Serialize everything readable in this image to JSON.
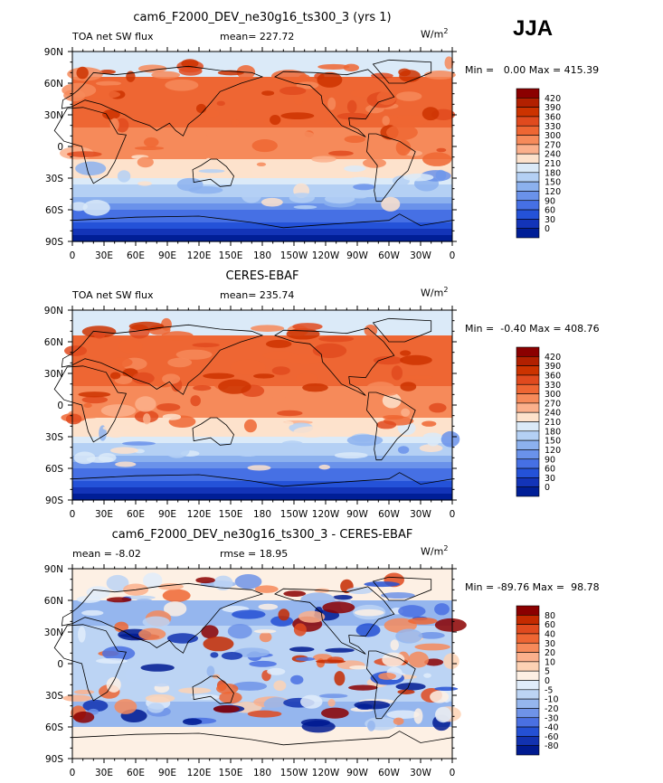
{
  "season": "JJA",
  "units": "W/m",
  "units_exp": "2",
  "chart_data": [
    {
      "type": "heatmap",
      "title": "cam6_F2000_DEV_ne30g16_ts300_3 (yrs 1)",
      "left_label": "TOA net SW flux",
      "stat_text": "mean= 227.72",
      "minmax_text": "Min =   0.00 Max = 415.39",
      "min": 0.0,
      "max": 415.39,
      "mean": 227.72,
      "x_ticks": [
        "0",
        "30E",
        "60E",
        "90E",
        "120E",
        "150E",
        "180",
        "150W",
        "120W",
        "90W",
        "60W",
        "30W",
        "0"
      ],
      "y_ticks": [
        "90N",
        "60N",
        "30N",
        "0",
        "30S",
        "60S",
        "90S"
      ],
      "colorbar_levels": [
        "420",
        "390",
        "360",
        "330",
        "300",
        "270",
        "240",
        "210",
        "180",
        "150",
        "120",
        "90",
        "60",
        "30",
        "0"
      ],
      "colorbar_colors": [
        "#8b0000",
        "#b22000",
        "#cc3300",
        "#e04a1e",
        "#ee6633",
        "#f68a5a",
        "#fbb08c",
        "#fde2cc",
        "#dbeaf8",
        "#b4d0f4",
        "#8cb1ee",
        "#6a92ea",
        "#4670e4",
        "#2452d8",
        "#1334b8",
        "#001e96"
      ]
    },
    {
      "type": "heatmap",
      "title": "CERES-EBAF",
      "left_label": "TOA net SW flux",
      "stat_text": "mean= 235.74",
      "minmax_text": "Min =  -0.40 Max = 408.76",
      "min": -0.4,
      "max": 408.76,
      "mean": 235.74,
      "x_ticks": [
        "0",
        "30E",
        "60E",
        "90E",
        "120E",
        "150E",
        "180",
        "150W",
        "120W",
        "90W",
        "60W",
        "30W",
        "0"
      ],
      "y_ticks": [
        "90N",
        "60N",
        "30N",
        "0",
        "30S",
        "60S",
        "90S"
      ],
      "colorbar_levels": [
        "420",
        "390",
        "360",
        "330",
        "300",
        "270",
        "240",
        "210",
        "180",
        "150",
        "120",
        "90",
        "60",
        "30",
        "0"
      ],
      "colorbar_colors": [
        "#8b0000",
        "#b22000",
        "#cc3300",
        "#e04a1e",
        "#ee6633",
        "#f68a5a",
        "#fbb08c",
        "#fde2cc",
        "#dbeaf8",
        "#b4d0f4",
        "#8cb1ee",
        "#6a92ea",
        "#4670e4",
        "#2452d8",
        "#1334b8",
        "#001e96"
      ]
    },
    {
      "type": "heatmap",
      "title": "cam6_F2000_DEV_ne30g16_ts300_3 - CERES-EBAF",
      "left_label": "mean =  -8.02",
      "stat_text": "rmse =   18.95",
      "minmax_text": "Min = -89.76 Max =  98.78",
      "min": -89.76,
      "max": 98.78,
      "mean": -8.02,
      "rmse": 18.95,
      "x_ticks": [
        "0",
        "30E",
        "60E",
        "90E",
        "120E",
        "150E",
        "180",
        "150W",
        "120W",
        "90W",
        "60W",
        "30W",
        "0"
      ],
      "y_ticks": [
        "90N",
        "60N",
        "30N",
        "0",
        "30S",
        "60S",
        "90S"
      ],
      "colorbar_levels": [
        "80",
        "60",
        "40",
        "30",
        "20",
        "10",
        "5",
        "0",
        "-5",
        "-10",
        "-20",
        "-30",
        "-40",
        "-60",
        "-80"
      ],
      "colorbar_colors": [
        "#8b0000",
        "#c42a00",
        "#e04a1e",
        "#ee6633",
        "#f68a5a",
        "#fbb08c",
        "#fdd2b4",
        "#fdf0e4",
        "#e0ecfa",
        "#bcd4f4",
        "#95b6ee",
        "#6f93e8",
        "#4a70e2",
        "#2450d4",
        "#1232b0",
        "#001a90"
      ]
    }
  ]
}
